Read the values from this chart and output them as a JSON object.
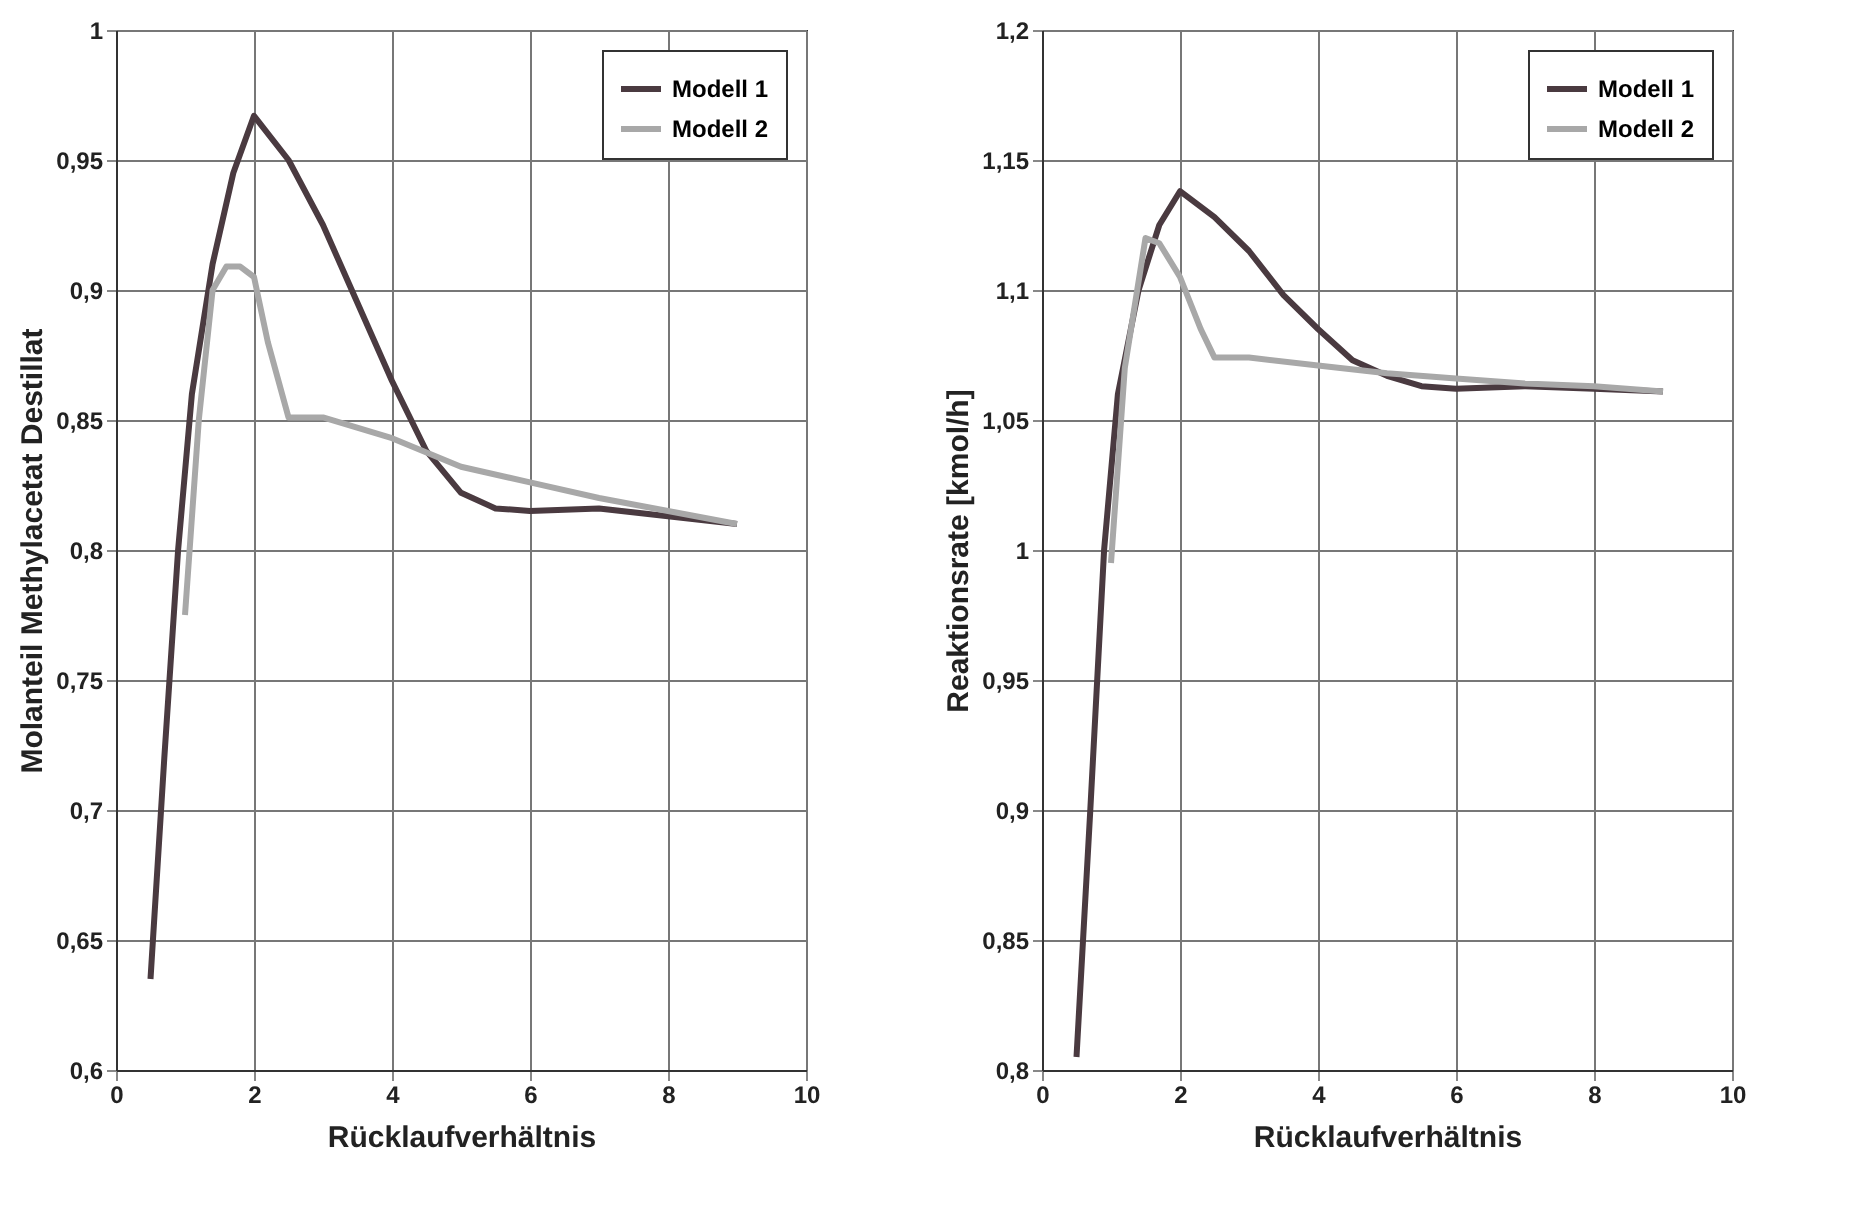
{
  "chart_data": [
    {
      "type": "line",
      "xlabel": "Rücklaufverhältnis",
      "ylabel": "Molanteil Methylacetat Destillat",
      "xlim": [
        0,
        10
      ],
      "xticks": [
        0,
        2,
        4,
        6,
        8,
        10
      ],
      "ylim": [
        0.6,
        1
      ],
      "yticks": [
        {
          "value": 0.6,
          "label": "0,6"
        },
        {
          "value": 0.65,
          "label": "0,65"
        },
        {
          "value": 0.7,
          "label": "0,7"
        },
        {
          "value": 0.75,
          "label": "0,75"
        },
        {
          "value": 0.8,
          "label": "0,8"
        },
        {
          "value": 0.85,
          "label": "0,85"
        },
        {
          "value": 0.9,
          "label": "0,9"
        },
        {
          "value": 0.95,
          "label": "0,95"
        },
        {
          "value": 1,
          "label": "1"
        }
      ],
      "grid": true,
      "legend": "top right",
      "line_style": "solid",
      "series": [
        {
          "name": "Modell 1",
          "color": "#4a3a40",
          "x": [
            0.5,
            0.7,
            0.9,
            1.1,
            1.4,
            1.7,
            2,
            2.5,
            3,
            3.5,
            4,
            4.5,
            5,
            5.5,
            6,
            7,
            8,
            9
          ],
          "values": [
            0.635,
            0.72,
            0.8,
            0.86,
            0.91,
            0.945,
            0.967,
            0.95,
            0.925,
            0.895,
            0.865,
            0.838,
            0.822,
            0.816,
            0.815,
            0.816,
            0.813,
            0.81
          ]
        },
        {
          "name": "Modell 2",
          "color": "#a8a8a8",
          "x": [
            1,
            1.2,
            1.4,
            1.6,
            1.8,
            2,
            2.2,
            2.5,
            3,
            4,
            5,
            6,
            7,
            8,
            9
          ],
          "values": [
            0.775,
            0.85,
            0.9,
            0.909,
            0.909,
            0.905,
            0.88,
            0.851,
            0.851,
            0.843,
            0.832,
            0.826,
            0.82,
            0.815,
            0.81
          ]
        }
      ]
    },
    {
      "type": "line",
      "xlabel": "Rücklaufverhältnis",
      "ylabel": "Reaktionsrate [kmol/h]",
      "xlim": [
        0,
        10
      ],
      "xticks": [
        0,
        2,
        4,
        6,
        8,
        10
      ],
      "ylim": [
        0.8,
        1.2
      ],
      "yticks": [
        {
          "value": 0.8,
          "label": "0,8"
        },
        {
          "value": 0.85,
          "label": "0,85"
        },
        {
          "value": 0.9,
          "label": "0,9"
        },
        {
          "value": 0.95,
          "label": "0,95"
        },
        {
          "value": 1,
          "label": "1"
        },
        {
          "value": 1.05,
          "label": "1,05"
        },
        {
          "value": 1.1,
          "label": "1,1"
        },
        {
          "value": 1.15,
          "label": "1,15"
        },
        {
          "value": 1.2,
          "label": "1,2"
        }
      ],
      "grid": true,
      "legend": "top right",
      "line_style": "solid",
      "series": [
        {
          "name": "Modell 1",
          "color": "#4a3a40",
          "x": [
            0.5,
            0.7,
            0.9,
            1.1,
            1.4,
            1.7,
            2,
            2.5,
            3,
            3.5,
            4,
            4.5,
            5,
            5.5,
            6,
            7,
            8,
            9
          ],
          "values": [
            0.805,
            0.9,
            1.0,
            1.06,
            1.1,
            1.125,
            1.138,
            1.128,
            1.115,
            1.098,
            1.085,
            1.073,
            1.067,
            1.063,
            1.062,
            1.063,
            1.062,
            1.061
          ]
        },
        {
          "name": "Modell 2",
          "color": "#a8a8a8",
          "x": [
            1,
            1.2,
            1.5,
            1.7,
            2,
            2.3,
            2.5,
            3,
            4,
            5,
            6,
            7,
            8,
            9
          ],
          "values": [
            0.995,
            1.07,
            1.12,
            1.118,
            1.105,
            1.085,
            1.074,
            1.074,
            1.071,
            1.068,
            1.066,
            1.064,
            1.063,
            1.061
          ]
        }
      ]
    }
  ]
}
